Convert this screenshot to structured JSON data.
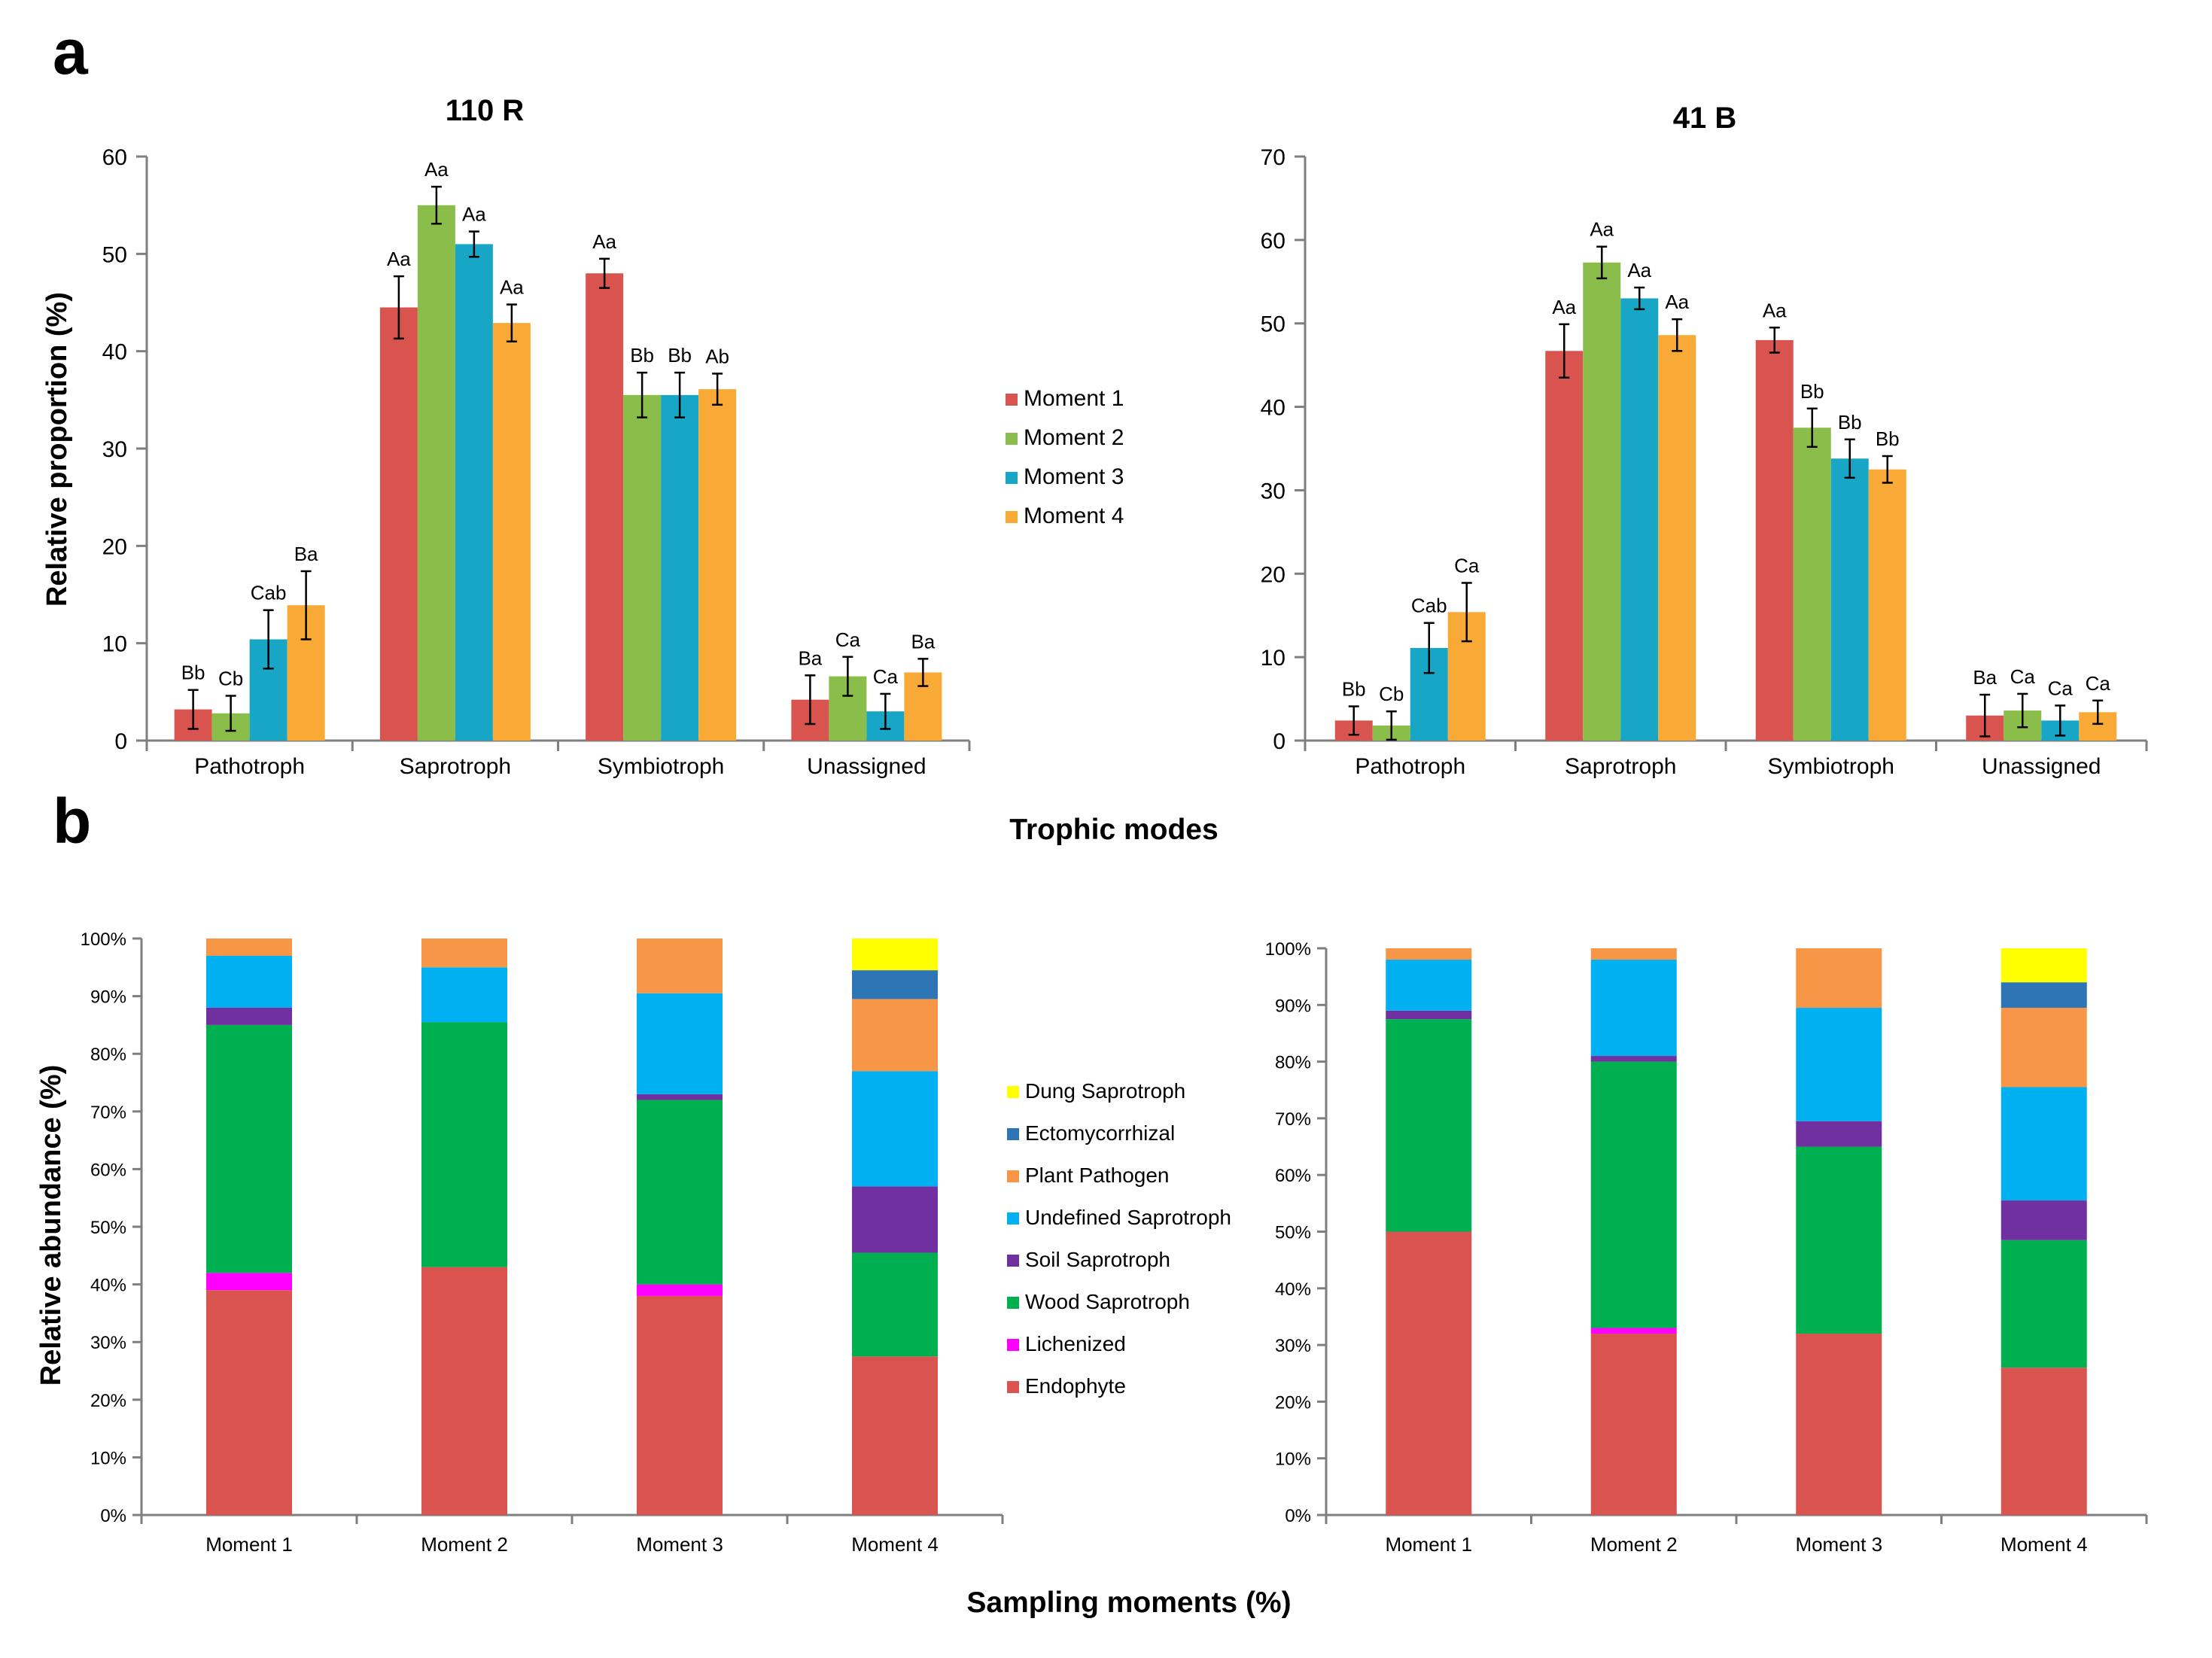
{
  "panels": {
    "a": "a",
    "b": "b"
  },
  "shared_labels": {
    "ylabel_a": "Relative proportion (%)",
    "xlabel_a": "Trophic modes",
    "ylabel_b": "Relative abundance (%)",
    "xlabel_b": "Sampling moments (%)"
  },
  "legend_a": [
    {
      "name": "Moment 1",
      "color": "#d9534f"
    },
    {
      "name": "Moment 2",
      "color": "#8bbd4a"
    },
    {
      "name": "Moment 3",
      "color": "#18a6c6"
    },
    {
      "name": "Moment 4",
      "color": "#f9a935"
    }
  ],
  "legend_b": [
    {
      "name": "Dung Saprotroph",
      "color": "#ffff00"
    },
    {
      "name": "Ectomycorrhizal",
      "color": "#2e75b6"
    },
    {
      "name": "Plant Pathogen",
      "color": "#f79646"
    },
    {
      "name": "Undefined Saprotroph",
      "color": "#00b0f0"
    },
    {
      "name": "Soil Saprotroph",
      "color": "#7030a0"
    },
    {
      "name": "Wood Saprotroph",
      "color": "#00b050"
    },
    {
      "name": "Lichenized",
      "color": "#ff00ff"
    },
    {
      "name": "Endophyte",
      "color": "#d9534f"
    }
  ],
  "chart_data": [
    {
      "type": "bar",
      "title": "110 R",
      "categories": [
        "Pathotroph",
        "Saprotroph",
        "Symbiotroph",
        "Unassigned"
      ],
      "ylim": [
        0,
        60
      ],
      "yticks": [
        0,
        10,
        20,
        30,
        40,
        50,
        60
      ],
      "series": [
        {
          "name": "Moment 1",
          "values": [
            3.2,
            44.5,
            48.0,
            4.2
          ],
          "err": [
            2.0,
            3.2,
            1.5,
            2.5
          ],
          "labels": [
            "Bb",
            "Aa",
            "Aa",
            "Ba"
          ]
        },
        {
          "name": "Moment 2",
          "values": [
            2.8,
            55.0,
            35.5,
            6.6
          ],
          "err": [
            1.8,
            1.9,
            2.3,
            2.0
          ],
          "labels": [
            "Cb",
            "Aa",
            "Bb",
            "Ca"
          ]
        },
        {
          "name": "Moment 3",
          "values": [
            10.4,
            51.0,
            35.5,
            3.0
          ],
          "err": [
            3.0,
            1.3,
            2.3,
            1.8
          ],
          "labels": [
            "Cab",
            "Aa",
            "Bb",
            "Ca"
          ]
        },
        {
          "name": "Moment 4",
          "values": [
            13.9,
            42.9,
            36.1,
            7.0
          ],
          "err": [
            3.5,
            1.9,
            1.6,
            1.4
          ],
          "labels": [
            "Ba",
            "Aa",
            "Ab",
            "Ba"
          ]
        }
      ]
    },
    {
      "type": "bar",
      "title": "41 B",
      "categories": [
        "Pathotroph",
        "Saprotroph",
        "Symbiotroph",
        "Unassigned"
      ],
      "ylim": [
        0,
        70
      ],
      "yticks": [
        0,
        10,
        20,
        30,
        40,
        50,
        60,
        70
      ],
      "series": [
        {
          "name": "Moment 1",
          "values": [
            2.4,
            46.7,
            48.0,
            3.0
          ],
          "err": [
            1.7,
            3.2,
            1.5,
            2.5
          ],
          "labels": [
            "Bb",
            "Aa",
            "Aa",
            "Ba"
          ]
        },
        {
          "name": "Moment 2",
          "values": [
            1.8,
            57.3,
            37.5,
            3.6
          ],
          "err": [
            1.7,
            1.9,
            2.3,
            2.0
          ],
          "labels": [
            "Cb",
            "Aa",
            "Bb",
            "Ca"
          ]
        },
        {
          "name": "Moment 3",
          "values": [
            11.1,
            53.0,
            33.8,
            2.4
          ],
          "err": [
            3.0,
            1.3,
            2.3,
            1.8
          ],
          "labels": [
            "Cab",
            "Aa",
            "Bb",
            "Ca"
          ]
        },
        {
          "name": "Moment 4",
          "values": [
            15.4,
            48.6,
            32.5,
            3.4
          ],
          "err": [
            3.5,
            1.9,
            1.6,
            1.4
          ],
          "labels": [
            "Ca",
            "Aa",
            "Bb",
            "Ca"
          ]
        }
      ]
    },
    {
      "type": "bar",
      "stacked": true,
      "categories": [
        "Moment 1",
        "Moment 2",
        "Moment 3",
        "Moment 4"
      ],
      "ylim": [
        0,
        100
      ],
      "yticks": [
        "0%",
        "10%",
        "20%",
        "30%",
        "40%",
        "50%",
        "60%",
        "70%",
        "80%",
        "90%",
        "100%"
      ],
      "series": [
        {
          "name": "Endophyte",
          "values": [
            39,
            43,
            38,
            27.5
          ]
        },
        {
          "name": "Lichenized",
          "values": [
            3,
            0,
            2,
            0
          ]
        },
        {
          "name": "Wood Saprotroph",
          "values": [
            43,
            42.5,
            32,
            18
          ]
        },
        {
          "name": "Soil Saprotroph",
          "values": [
            3,
            0,
            1,
            11.5
          ]
        },
        {
          "name": "Undefined Saprotroph",
          "values": [
            9,
            9.5,
            17.5,
            20
          ]
        },
        {
          "name": "Plant Pathogen",
          "values": [
            3,
            5,
            9.5,
            12.5
          ]
        },
        {
          "name": "Ectomycorrhizal",
          "values": [
            0,
            0,
            0,
            5
          ]
        },
        {
          "name": "Dung Saprotroph",
          "values": [
            0,
            0,
            0,
            5.5
          ]
        }
      ]
    },
    {
      "type": "bar",
      "stacked": true,
      "categories": [
        "Moment 1",
        "Moment 2",
        "Moment 3",
        "Moment 4"
      ],
      "ylim": [
        0,
        100
      ],
      "yticks": [
        "0%",
        "10%",
        "20%",
        "30%",
        "40%",
        "50%",
        "60%",
        "70%",
        "80%",
        "90%",
        "100%"
      ],
      "series": [
        {
          "name": "Endophyte",
          "values": [
            50,
            32,
            32,
            26
          ]
        },
        {
          "name": "Lichenized",
          "values": [
            0,
            1,
            0,
            0
          ]
        },
        {
          "name": "Wood Saprotroph",
          "values": [
            37.5,
            47,
            33,
            22.5
          ]
        },
        {
          "name": "Soil Saprotroph",
          "values": [
            1.5,
            1,
            4.5,
            7
          ]
        },
        {
          "name": "Undefined Saprotroph",
          "values": [
            9,
            17,
            20,
            20
          ]
        },
        {
          "name": "Plant Pathogen",
          "values": [
            2,
            2,
            10.5,
            14
          ]
        },
        {
          "name": "Ectomycorrhizal",
          "values": [
            0,
            0,
            0,
            4.5
          ]
        },
        {
          "name": "Dung Saprotroph",
          "values": [
            0,
            0,
            0,
            6
          ]
        }
      ]
    }
  ]
}
